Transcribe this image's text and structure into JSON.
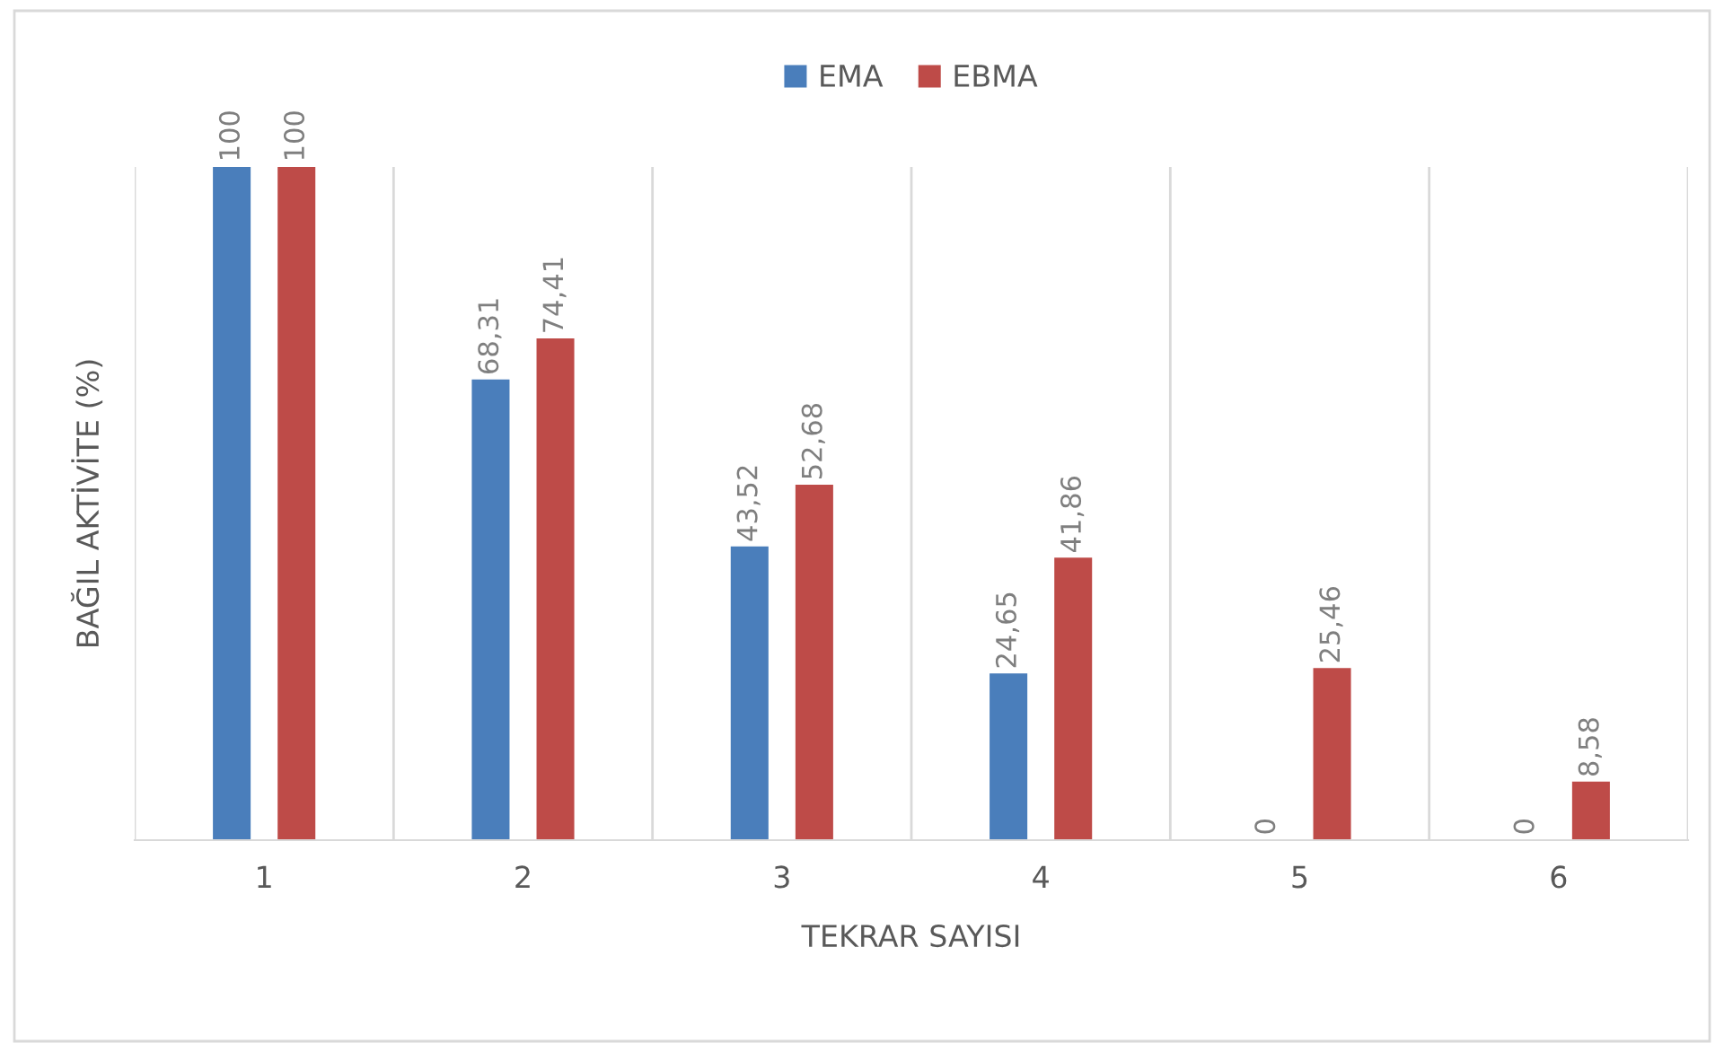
{
  "chart_data": {
    "type": "bar",
    "xlabel": "TEKRAR SAYISI",
    "ylabel": "BAĞIL AKTİVİTE (%)",
    "categories": [
      "1",
      "2",
      "3",
      "4",
      "5",
      "6"
    ],
    "ylim": [
      0,
      100
    ],
    "grid": "x",
    "legend": "top",
    "tick_labels": "x",
    "series": [
      {
        "name": "EMA",
        "color": "#4a7ebb",
        "values": [
          100,
          68.31,
          43.52,
          24.65,
          0,
          0
        ],
        "value_labels": [
          "100",
          "68,31",
          "43,52",
          "24,65",
          "0",
          "0"
        ]
      },
      {
        "name": "EBMA",
        "color": "#be4b48",
        "values": [
          100,
          74.41,
          52.68,
          41.86,
          25.46,
          8.58
        ],
        "value_labels": [
          "100",
          "74,41",
          "52,68",
          "41,86",
          "25,46",
          "8,58"
        ]
      }
    ]
  }
}
